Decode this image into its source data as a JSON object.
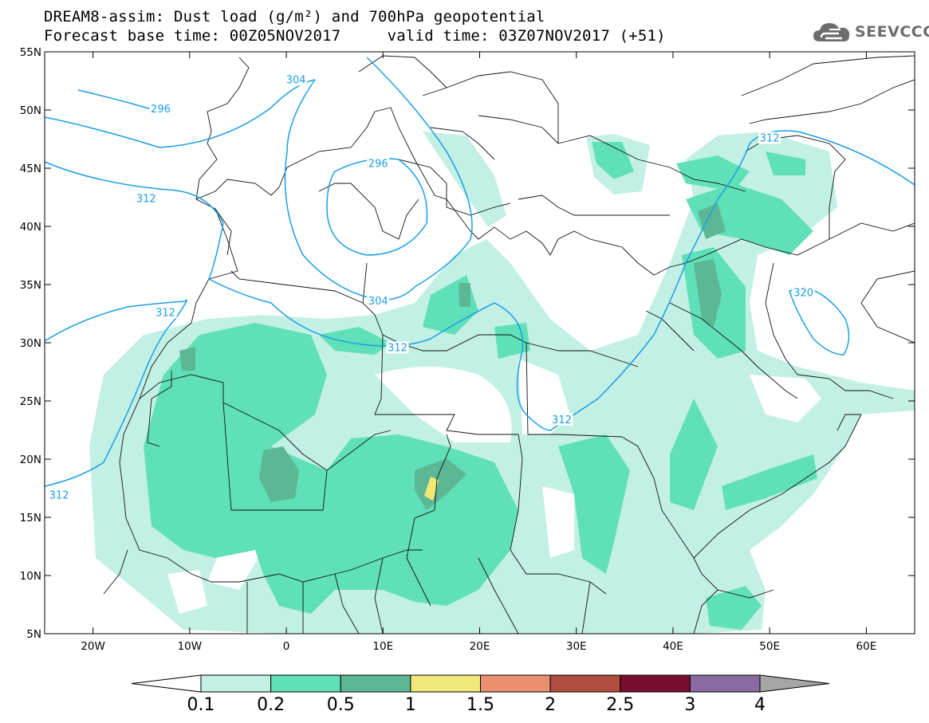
{
  "title": {
    "line1": "DREAM8-assim: Dust load (g/m²) and 700hPa geopotential",
    "line2": "Forecast base time: 00Z05NOV2017     valid time: 03Z07NOV2017 (+51)"
  },
  "logo": {
    "text": "SEEVCCC",
    "icon": "cloud-icon",
    "color": "#6d6d6d"
  },
  "map": {
    "lon_range": [
      -25,
      65
    ],
    "lat_range": [
      5,
      55
    ],
    "lon_ticks": [
      {
        "value": -20,
        "label": "20W"
      },
      {
        "value": -10,
        "label": "10W"
      },
      {
        "value": 0,
        "label": "0"
      },
      {
        "value": 10,
        "label": "10E"
      },
      {
        "value": 20,
        "label": "20E"
      },
      {
        "value": 30,
        "label": "30E"
      },
      {
        "value": 40,
        "label": "40E"
      },
      {
        "value": 50,
        "label": "50E"
      },
      {
        "value": 60,
        "label": "60E"
      }
    ],
    "lat_ticks": [
      {
        "value": 55,
        "label": "55N"
      },
      {
        "value": 50,
        "label": "50N"
      },
      {
        "value": 45,
        "label": "45N"
      },
      {
        "value": 40,
        "label": "40N"
      },
      {
        "value": 35,
        "label": "35N"
      },
      {
        "value": 30,
        "label": "30N"
      },
      {
        "value": 25,
        "label": "25N"
      },
      {
        "value": 20,
        "label": "20N"
      },
      {
        "value": 15,
        "label": "15N"
      },
      {
        "value": 10,
        "label": "10N"
      },
      {
        "value": 5,
        "label": "5N"
      }
    ],
    "contour_color": "#1a9ee6",
    "contour_labels": [
      {
        "text": "304",
        "lon": 1,
        "lat": 52.5
      },
      {
        "text": "296",
        "lon": -13,
        "lat": 50
      },
      {
        "text": "296",
        "lon": 9.5,
        "lat": 45.3
      },
      {
        "text": "312",
        "lon": -14.5,
        "lat": 42.3
      },
      {
        "text": "304",
        "lon": 9.5,
        "lat": 33.5
      },
      {
        "text": "312",
        "lon": -12.5,
        "lat": 32.5
      },
      {
        "text": "312",
        "lon": 11.5,
        "lat": 29.5
      },
      {
        "text": "312",
        "lon": 28.5,
        "lat": 23.3
      },
      {
        "text": "312",
        "lon": -23.5,
        "lat": 16.8
      },
      {
        "text": "312",
        "lon": 50,
        "lat": 47.5
      },
      {
        "text": "320",
        "lon": 53.5,
        "lat": 34.2
      }
    ]
  },
  "colorbar": {
    "levels": [
      "0.1",
      "0.2",
      "0.5",
      "1",
      "1.5",
      "2",
      "2.5",
      "3",
      "4"
    ],
    "colors": [
      "#ffffff",
      "#c3f0e4",
      "#5fe0b8",
      "#5cb894",
      "#f2e87a",
      "#ea9070",
      "#b24e40",
      "#7a0e2e",
      "#8a6aa0",
      "#a6a6a6"
    ]
  }
}
